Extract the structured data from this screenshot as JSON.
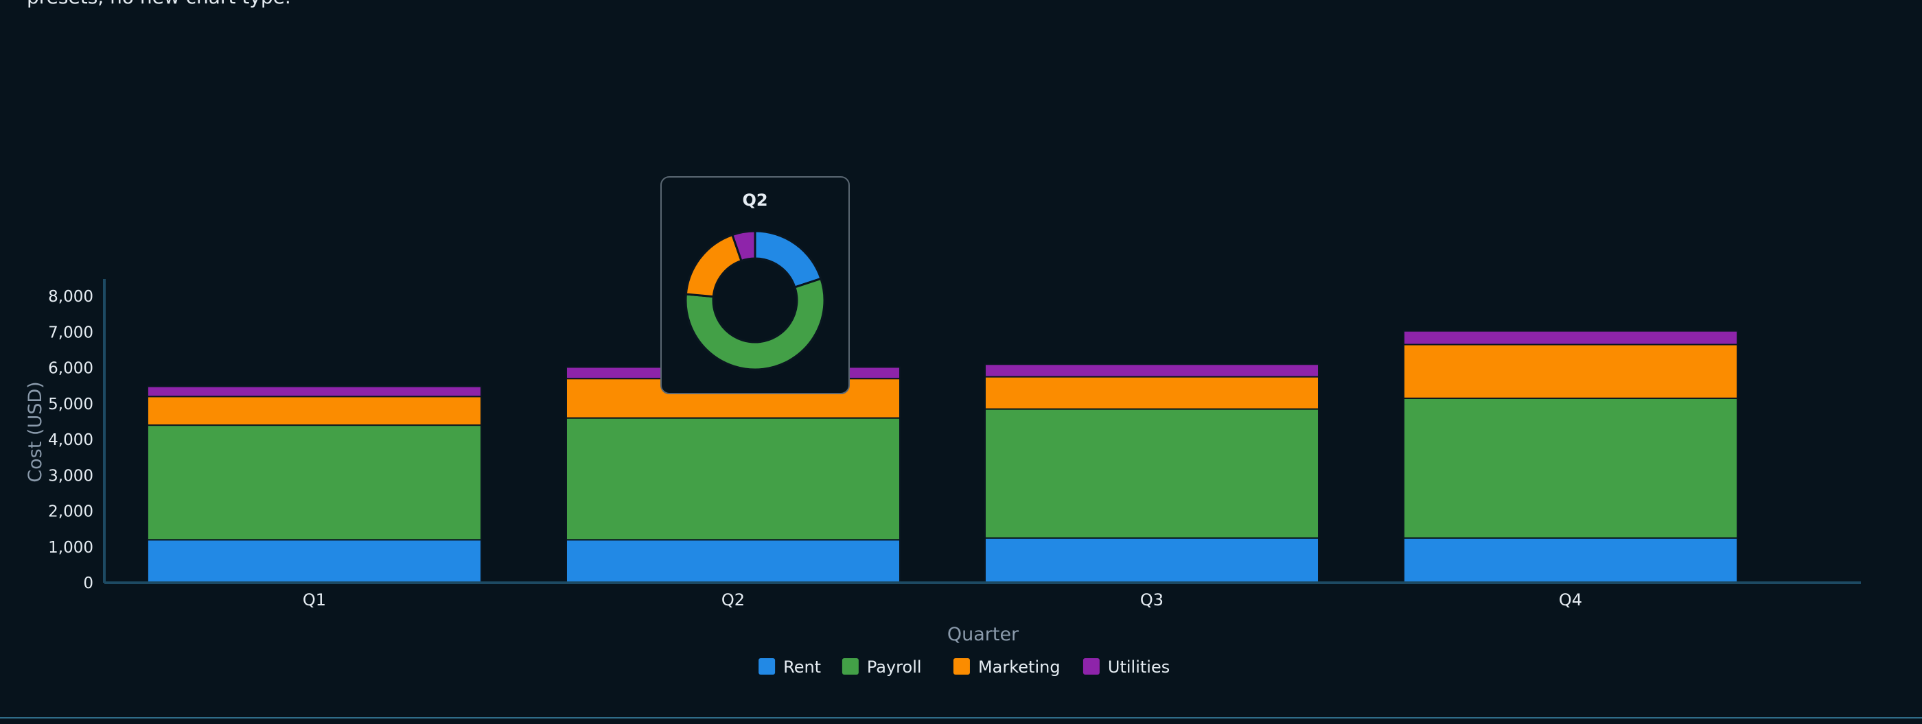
{
  "intro_text": "presets, no new chart type.",
  "colors": {
    "background": "#07131c",
    "axis": "#1d4a63",
    "tick_text": "#e6edf3",
    "axis_title": "#8a9aab",
    "bar_stroke": "#0a1620",
    "tooltip_bg": "#07131c",
    "tooltip_border": "#5a6772",
    "rule": "#2f6c88"
  },
  "chart_data": {
    "type": "bar",
    "stacked": true,
    "categories": [
      "Q1",
      "Q2",
      "Q3",
      "Q4"
    ],
    "series": [
      {
        "name": "Rent",
        "color": "#2289e5",
        "values": [
          1200,
          1200,
          1250,
          1250
        ]
      },
      {
        "name": "Payroll",
        "color": "#43a047",
        "values": [
          3200,
          3400,
          3600,
          3900
        ]
      },
      {
        "name": "Marketing",
        "color": "#fb8c00",
        "values": [
          800,
          1100,
          900,
          1500
        ]
      },
      {
        "name": "Utilities",
        "color": "#8e24aa",
        "values": [
          280,
          320,
          350,
          380
        ]
      }
    ],
    "xlabel": "Quarter",
    "ylabel": "Cost (USD)",
    "ylim": [
      0,
      8000
    ],
    "yticks": [
      "0",
      "1,000",
      "2,000",
      "3,000",
      "4,000",
      "5,000",
      "6,000",
      "7,000",
      "8,000"
    ],
    "grid": false,
    "legend_position": "bottom-center",
    "tooltip": {
      "category": "Q2",
      "title": "Q2",
      "type": "donut"
    }
  }
}
